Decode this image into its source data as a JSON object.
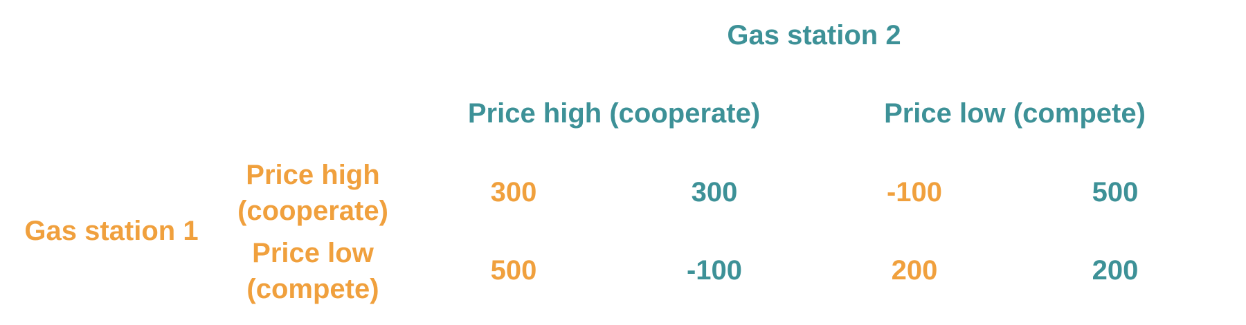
{
  "colors": {
    "player1": "#f0a03d",
    "player2": "#3d9197",
    "background": "#ffffff"
  },
  "player2": {
    "name": "Gas station 2",
    "strategies": [
      "Price high (cooperate)",
      "Price low (compete)"
    ]
  },
  "player1": {
    "name": "Gas station 1",
    "strategies": [
      {
        "line1": "Price high",
        "line2": "(cooperate)"
      },
      {
        "line1": "Price low",
        "line2": "(compete)"
      }
    ]
  },
  "payoffs": [
    [
      {
        "p1": "300",
        "p2": "300"
      },
      {
        "p1": "-100",
        "p2": "500"
      }
    ],
    [
      {
        "p1": "500",
        "p2": "-100"
      },
      {
        "p1": "200",
        "p2": "200"
      }
    ]
  ]
}
